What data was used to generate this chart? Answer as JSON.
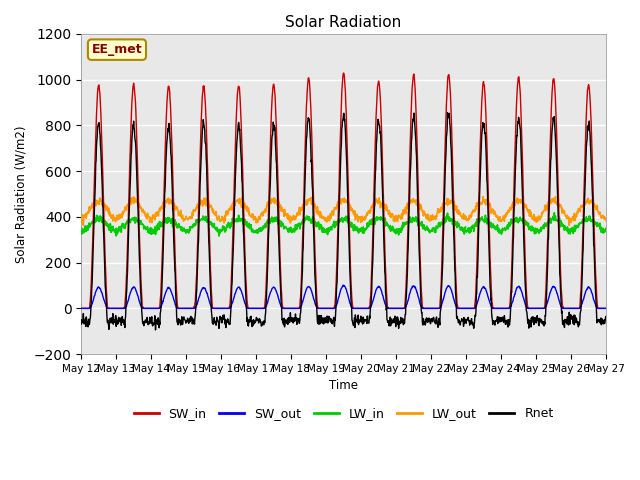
{
  "title": "Solar Radiation",
  "ylabel": "Solar Radiation (W/m2)",
  "xlabel": "Time",
  "ylim": [
    -200,
    1200
  ],
  "yticks": [
    -200,
    0,
    200,
    400,
    600,
    800,
    1000,
    1200
  ],
  "annotation_text": "EE_met",
  "colors": {
    "SW_in": "#cc0000",
    "SW_out": "#0000ee",
    "LW_in": "#00cc00",
    "LW_out": "#ff9900",
    "Rnet": "#000000"
  },
  "legend_labels": [
    "SW_in",
    "SW_out",
    "LW_in",
    "LW_out",
    "Rnet"
  ],
  "n_days": 15,
  "start_day": 12,
  "dt_hours": 0.25,
  "SW_in_peaks": [
    975,
    980,
    975,
    970,
    975,
    980,
    1005,
    1030,
    995,
    1020,
    1020,
    990,
    1010,
    1005,
    975
  ],
  "SW_out_peaks": [
    92,
    92,
    90,
    90,
    92,
    92,
    96,
    100,
    95,
    98,
    98,
    94,
    96,
    95,
    92
  ],
  "LW_in_base": 340,
  "LW_in_amp": 50,
  "LW_out_base": 390,
  "LW_out_amp": 80,
  "background_color": "#ffffff",
  "plot_bg_color": "#e8e8e8",
  "grid_color": "#ffffff"
}
